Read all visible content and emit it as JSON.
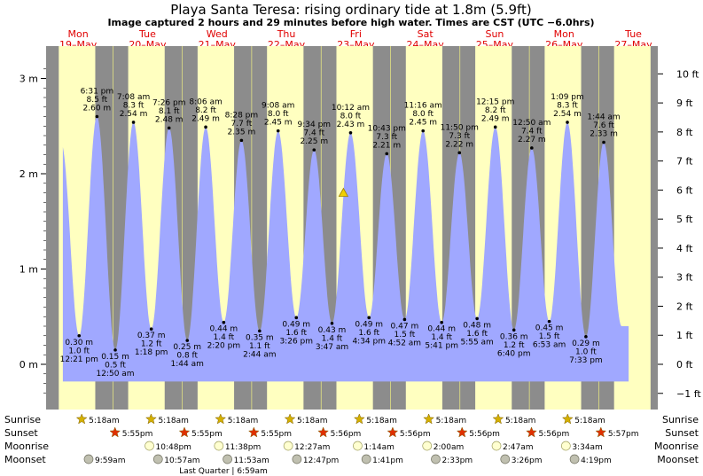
{
  "chart_data": {
    "type": "area",
    "title": "Playa Santa Teresa: rising  ordinary tide at 1.8m (5.9ft)",
    "subtitle": "Image captured 2 hours and 29 minutes before high water. Times are CST (UTC −6.0hrs)",
    "left_axis": {
      "unit": "m",
      "ticks": [
        {
          "v": 0,
          "label": "0 m"
        },
        {
          "v": 1,
          "label": "1 m"
        },
        {
          "v": 2,
          "label": "2 m"
        },
        {
          "v": 3,
          "label": "3 m"
        }
      ],
      "ylim": [
        -0.35,
        3.2
      ]
    },
    "right_axis": {
      "unit": "ft",
      "ticks": [
        "−1 ft",
        "0 ft",
        "1 ft",
        "2 ft",
        "3 ft",
        "4 ft",
        "5 ft",
        "6 ft",
        "7 ft",
        "8 ft",
        "9 ft",
        "10 ft"
      ]
    },
    "days": [
      {
        "name": "Mon",
        "date": "19–May"
      },
      {
        "name": "Tue",
        "date": "20–May"
      },
      {
        "name": "Wed",
        "date": "21–May"
      },
      {
        "name": "Thu",
        "date": "22–May"
      },
      {
        "name": "Fri",
        "date": "23–May"
      },
      {
        "name": "Sat",
        "date": "24–May"
      },
      {
        "name": "Sun",
        "date": "25–May"
      },
      {
        "name": "Mon",
        "date": "26–May"
      },
      {
        "name": "Tue",
        "date": "27–May"
      }
    ],
    "tides": [
      {
        "type": "low",
        "time": "12:21 pm",
        "ft": "1.0 ft",
        "m": 0.3,
        "t": 0.514
      },
      {
        "type": "high",
        "time": "6:31 pm",
        "ft": "8.5 ft",
        "m": 2.6,
        "t": 0.771
      },
      {
        "type": "low",
        "time": "12:50 am",
        "ft": "0.5 ft",
        "m": 0.15,
        "t": 1.035
      },
      {
        "type": "high",
        "time": "7:08 am",
        "ft": "8.3 ft",
        "m": 2.54,
        "t": 1.297
      },
      {
        "type": "low",
        "time": "1:18 pm",
        "ft": "1.2 ft",
        "m": 0.37,
        "t": 1.554
      },
      {
        "type": "high",
        "time": "7:26 pm",
        "ft": "8.1 ft",
        "m": 2.48,
        "t": 1.81
      },
      {
        "type": "low",
        "time": "1:44 am",
        "ft": "0.8 ft",
        "m": 0.25,
        "t": 2.072
      },
      {
        "type": "high",
        "time": "8:06 am",
        "ft": "8.2 ft",
        "m": 2.49,
        "t": 2.338
      },
      {
        "type": "low",
        "time": "2:20 pm",
        "ft": "1.4 ft",
        "m": 0.44,
        "t": 2.597
      },
      {
        "type": "high",
        "time": "8:28 pm",
        "ft": "7.7 ft",
        "m": 2.35,
        "t": 2.853
      },
      {
        "type": "low",
        "time": "2:44 am",
        "ft": "1.1 ft",
        "m": 0.35,
        "t": 3.114
      },
      {
        "type": "high",
        "time": "9:08 am",
        "ft": "8.0 ft",
        "m": 2.45,
        "t": 3.381
      },
      {
        "type": "low",
        "time": "3:26 pm",
        "ft": "1.6 ft",
        "m": 0.49,
        "t": 3.643
      },
      {
        "type": "high",
        "time": "9:34 pm",
        "ft": "7.4 ft",
        "m": 2.25,
        "t": 3.899
      },
      {
        "type": "low",
        "time": "3:47 am",
        "ft": "1.4 ft",
        "m": 0.43,
        "t": 4.157
      },
      {
        "type": "high",
        "time": "10:12 am",
        "ft": "8.0 ft",
        "m": 2.43,
        "t": 4.425
      },
      {
        "type": "low",
        "time": "4:34 pm",
        "ft": "1.6 ft",
        "m": 0.49,
        "t": 4.69
      },
      {
        "type": "high",
        "time": "10:43 pm",
        "ft": "7.3 ft",
        "m": 2.21,
        "t": 4.946
      },
      {
        "type": "low",
        "time": "4:52 am",
        "ft": "1.5 ft",
        "m": 0.47,
        "t": 5.203
      },
      {
        "type": "high",
        "time": "11:16 am",
        "ft": "8.0 ft",
        "m": 2.45,
        "t": 5.469
      },
      {
        "type": "low",
        "time": "5:41 pm",
        "ft": "1.4 ft",
        "m": 0.44,
        "t": 5.737
      },
      {
        "type": "high",
        "time": "11:50 pm",
        "ft": "7.3 ft",
        "m": 2.22,
        "t": 5.993
      },
      {
        "type": "low",
        "time": "5:55 am",
        "ft": "1.6 ft",
        "m": 0.48,
        "t": 6.247
      },
      {
        "type": "high",
        "time": "12:15 pm",
        "ft": "8.2 ft",
        "m": 2.49,
        "t": 6.51
      },
      {
        "type": "low",
        "time": "6:40 pm",
        "ft": "1.2 ft",
        "m": 0.36,
        "t": 6.778
      },
      {
        "type": "high",
        "time": "12:50 am",
        "ft": "7.4 ft",
        "m": 2.27,
        "t": 7.035
      },
      {
        "type": "low",
        "time": "6:53 am",
        "ft": "1.5 ft",
        "m": 0.45,
        "t": 7.287
      },
      {
        "type": "high",
        "time": "1:09 pm",
        "ft": "8.3 ft",
        "m": 2.54,
        "t": 7.548
      },
      {
        "type": "low",
        "time": "7:33 pm",
        "ft": "1.0 ft",
        "m": 0.29,
        "t": 7.815
      },
      {
        "type": "high",
        "time": "1:44 am",
        "ft": "7.6 ft",
        "m": 2.33,
        "t": 8.072
      }
    ],
    "current": {
      "m": 1.8,
      "t": 4.322
    }
  },
  "rows": {
    "sunrise_label": "Sunrise",
    "sunset_label": "Sunset",
    "moonrise_label": "Moonrise",
    "moonset_label": "Moonset",
    "sunrise": [
      "5:18am",
      "5:18am",
      "5:18am",
      "5:18am",
      "5:18am",
      "5:18am",
      "5:18am",
      "5:18am"
    ],
    "sunset": [
      "5:55pm",
      "5:55pm",
      "5:55pm",
      "5:56pm",
      "5:56pm",
      "5:56pm",
      "5:56pm",
      "5:57pm"
    ],
    "moonrise": [
      "10:48pm",
      "11:38pm",
      "12:27am",
      "1:14am",
      "2:00am",
      "2:47am",
      "3:34am"
    ],
    "moonset": [
      "9:59am",
      "10:57am",
      "11:53am",
      "12:47pm",
      "1:41pm",
      "2:33pm",
      "3:26pm",
      "4:19pm"
    ],
    "moon_phase": "Last Quarter | 6:59am"
  },
  "colors": {
    "night": "#8c8c8c",
    "day": "#ffffc0",
    "water": "#a0a8ff",
    "day_label": "#e00000",
    "star": "#d4b000",
    "sunset_star": "#e03000"
  }
}
